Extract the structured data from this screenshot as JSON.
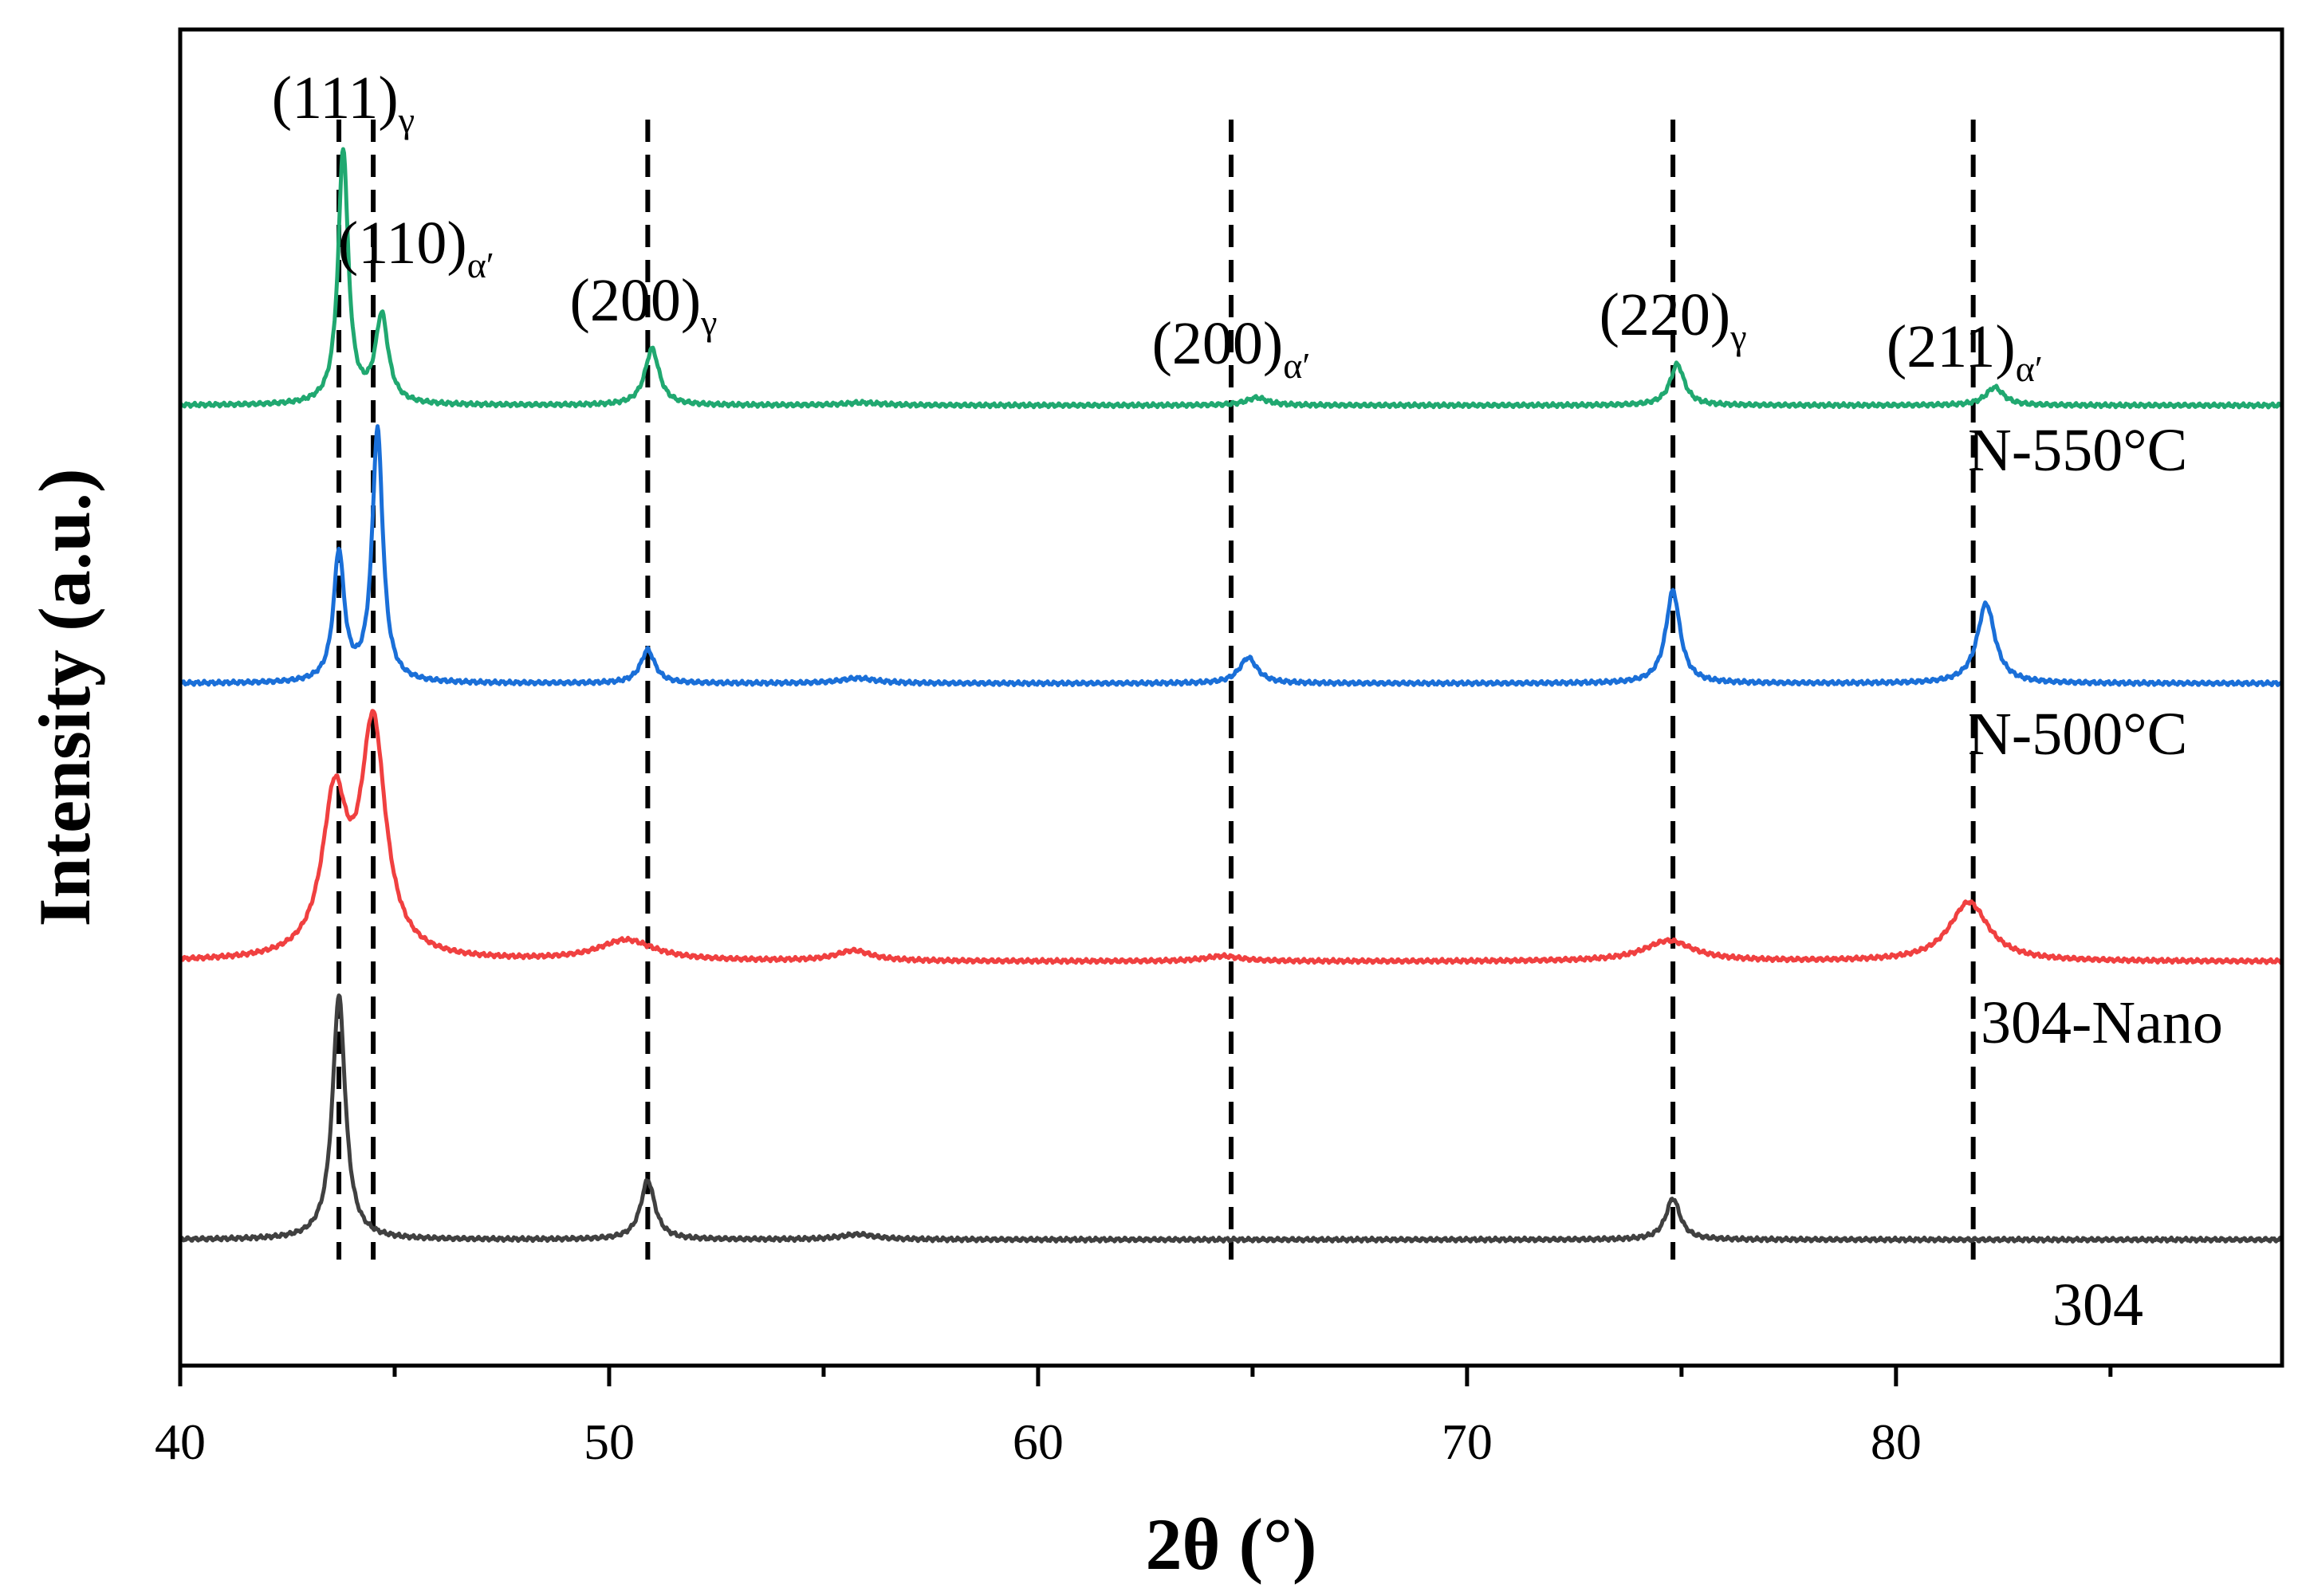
{
  "chart_data": {
    "type": "line",
    "title": "",
    "xlabel": "2θ (°)",
    "ylabel": "Intensity (a.u.)",
    "xlim": [
      40,
      89
    ],
    "xticks": [
      40,
      50,
      60,
      70,
      80
    ],
    "xtick_labels": [
      "40",
      "50",
      "60",
      "70",
      "80"
    ],
    "yticks_shown": false,
    "grid": false,
    "series": [
      {
        "name": "304",
        "color": "#404040",
        "offset": 0,
        "peaks": [
          {
            "pos": 43.7,
            "height": 95,
            "width": 0.18
          },
          {
            "pos": 50.9,
            "height": 23,
            "width": 0.2
          },
          {
            "pos": 55.8,
            "height": 2,
            "width": 0.5
          },
          {
            "pos": 74.8,
            "height": 16,
            "width": 0.2
          }
        ]
      },
      {
        "name": "304-Nano",
        "color": "#f04040",
        "offset": 108,
        "peaks": [
          {
            "pos": 43.6,
            "height": 60,
            "width": 0.35
          },
          {
            "pos": 44.5,
            "height": 89,
            "width": 0.35
          },
          {
            "pos": 50.4,
            "height": 8,
            "width": 0.8
          },
          {
            "pos": 55.7,
            "height": 4,
            "width": 0.5
          },
          {
            "pos": 64.3,
            "height": 2,
            "width": 0.5
          },
          {
            "pos": 74.7,
            "height": 8,
            "width": 0.7
          },
          {
            "pos": 81.7,
            "height": 23,
            "width": 0.55
          }
        ]
      },
      {
        "name": "N-500°C",
        "color": "#1a6fd8",
        "offset": 216,
        "peaks": [
          {
            "pos": 43.7,
            "height": 50,
            "width": 0.15
          },
          {
            "pos": 44.6,
            "height": 98,
            "width": 0.15
          },
          {
            "pos": 50.9,
            "height": 13,
            "width": 0.2
          },
          {
            "pos": 55.8,
            "height": 2,
            "width": 0.5
          },
          {
            "pos": 64.9,
            "height": 10,
            "width": 0.25
          },
          {
            "pos": 74.8,
            "height": 36,
            "width": 0.2
          },
          {
            "pos": 82.1,
            "height": 31,
            "width": 0.25
          }
        ]
      },
      {
        "name": "N-550°C",
        "color": "#20a870",
        "offset": 324,
        "peaks": [
          {
            "pos": 43.8,
            "height": 99,
            "width": 0.14
          },
          {
            "pos": 44.7,
            "height": 34,
            "width": 0.18
          },
          {
            "pos": 51.0,
            "height": 22,
            "width": 0.2
          },
          {
            "pos": 55.9,
            "height": 1,
            "width": 0.5
          },
          {
            "pos": 65.1,
            "height": 3,
            "width": 0.3
          },
          {
            "pos": 74.9,
            "height": 16,
            "width": 0.2
          },
          {
            "pos": 82.3,
            "height": 7,
            "width": 0.25
          }
        ]
      }
    ],
    "reference_lines": [
      43.7,
      44.5,
      50.9,
      64.5,
      74.8,
      81.8
    ],
    "annotations": [
      {
        "main": "(111)",
        "sub": "γ",
        "x": 43.8
      },
      {
        "main": "(110)",
        "sub": "α′",
        "x": 45.5
      },
      {
        "main": "(200)",
        "sub": "γ",
        "x": 50.8
      },
      {
        "main": "(200)",
        "sub": "α′",
        "x": 64.5
      },
      {
        "main": "(220)",
        "sub": "γ",
        "x": 74.8
      },
      {
        "main": "(211)",
        "sub": "α′",
        "x": 81.6
      }
    ]
  }
}
